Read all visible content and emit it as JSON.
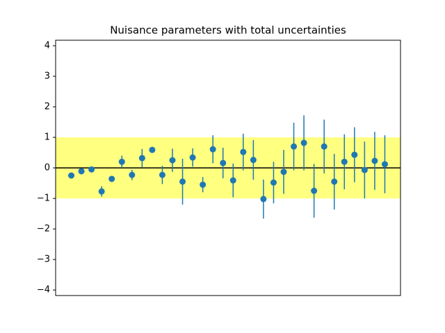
{
  "chart_data": {
    "type": "errorbar",
    "title": "Nuisance parameters with total uncertainties",
    "x": [
      0,
      1,
      2,
      3,
      4,
      5,
      6,
      7,
      8,
      9,
      10,
      11,
      12,
      13,
      14,
      15,
      16,
      17,
      18,
      19,
      20,
      21,
      22,
      23,
      24,
      25,
      26,
      27,
      28,
      29,
      30,
      31
    ],
    "values": [
      -0.25,
      -0.11,
      -0.05,
      -0.77,
      -0.36,
      0.2,
      -0.23,
      0.32,
      0.59,
      -0.23,
      0.25,
      -0.45,
      0.34,
      -0.55,
      0.61,
      0.16,
      -0.41,
      0.52,
      0.26,
      -1.02,
      -0.48,
      -0.13,
      0.7,
      0.82,
      -0.75,
      0.7,
      -0.45,
      0.2,
      0.43,
      -0.07,
      0.23,
      0.12
    ],
    "errors": [
      0.05,
      0.05,
      0.05,
      0.17,
      0.05,
      0.2,
      0.17,
      0.3,
      0.05,
      0.3,
      0.38,
      0.75,
      0.3,
      0.25,
      0.46,
      0.5,
      0.55,
      0.6,
      0.65,
      0.64,
      0.68,
      0.72,
      0.78,
      0.9,
      0.88,
      0.88,
      0.91,
      0.9,
      0.9,
      0.93,
      0.95,
      0.95
    ],
    "color": "#1f77b4",
    "band": [
      -1,
      1
    ],
    "band_color": "#ffff80",
    "hline": 0,
    "xlim": [
      -1.55,
      32.55
    ],
    "ylim": [
      -4.18,
      4.18
    ],
    "yticks": [
      {
        "value": -4,
        "label": "−4"
      },
      {
        "value": -3,
        "label": "−3"
      },
      {
        "value": -2,
        "label": "−2"
      },
      {
        "value": -1,
        "label": "−1"
      },
      0,
      1,
      2,
      3,
      4
    ]
  }
}
